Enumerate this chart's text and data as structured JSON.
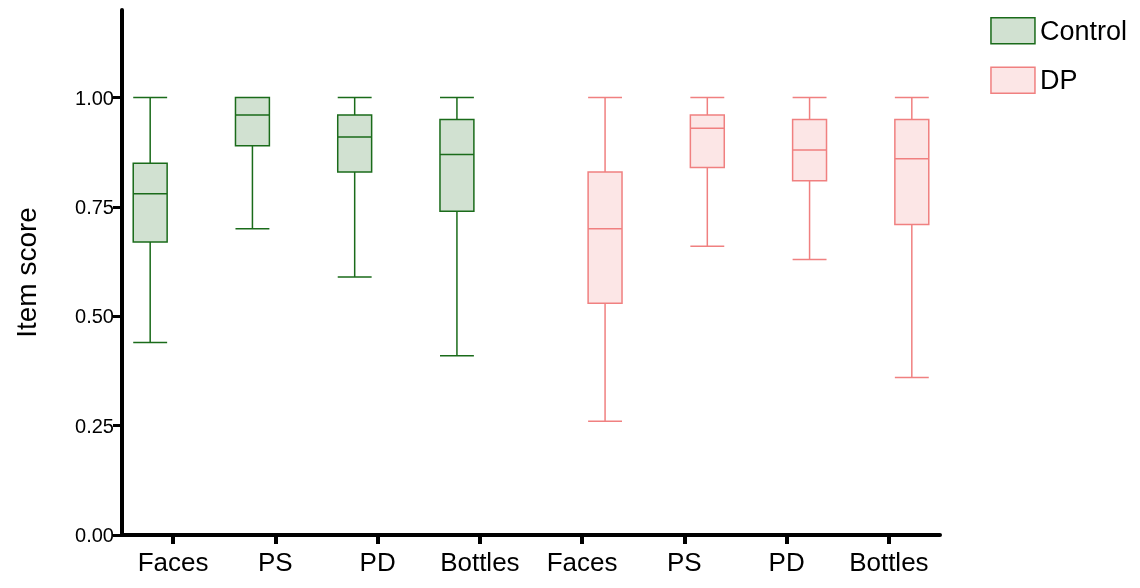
{
  "chart_data": {
    "type": "box",
    "ylabel": "Item score",
    "categories": [
      "Faces",
      "PS",
      "PD",
      "Bottles",
      "Faces",
      "PS",
      "PD",
      "Bottles"
    ],
    "series": [
      {
        "name": "Control",
        "color": "#1a6b1a",
        "boxes": [
          {
            "low": 0.44,
            "q1": 0.67,
            "median": 0.78,
            "q3": 0.85,
            "high": 1.0
          },
          {
            "low": 0.7,
            "q1": 0.89,
            "median": 0.96,
            "q3": 1.0,
            "high": 1.0
          },
          {
            "low": 0.59,
            "q1": 0.83,
            "median": 0.91,
            "q3": 0.96,
            "high": 1.0
          },
          {
            "low": 0.41,
            "q1": 0.74,
            "median": 0.87,
            "q3": 0.95,
            "high": 1.0
          },
          null,
          null,
          null,
          null
        ]
      },
      {
        "name": "DP",
        "color": "#f08080",
        "boxes": [
          null,
          null,
          null,
          null,
          {
            "low": 0.26,
            "q1": 0.53,
            "median": 0.7,
            "q3": 0.83,
            "high": 1.0
          },
          {
            "low": 0.66,
            "q1": 0.84,
            "median": 0.93,
            "q3": 0.96,
            "high": 1.0
          },
          {
            "low": 0.63,
            "q1": 0.81,
            "median": 0.88,
            "q3": 0.95,
            "high": 1.0
          },
          {
            "low": 0.36,
            "q1": 0.71,
            "median": 0.86,
            "q3": 0.95,
            "high": 1.0
          }
        ]
      }
    ],
    "ylim": [
      0,
      1.2
    ],
    "yticks": [
      {
        "value": 0,
        "label": "0.00"
      },
      {
        "value": 0.25,
        "label": "0.25"
      },
      {
        "value": 0.5,
        "label": "0.50"
      },
      {
        "value": 0.75,
        "label": "0.75"
      },
      {
        "value": 1,
        "label": "1.00"
      }
    ],
    "grid": false,
    "legend": "top right"
  }
}
